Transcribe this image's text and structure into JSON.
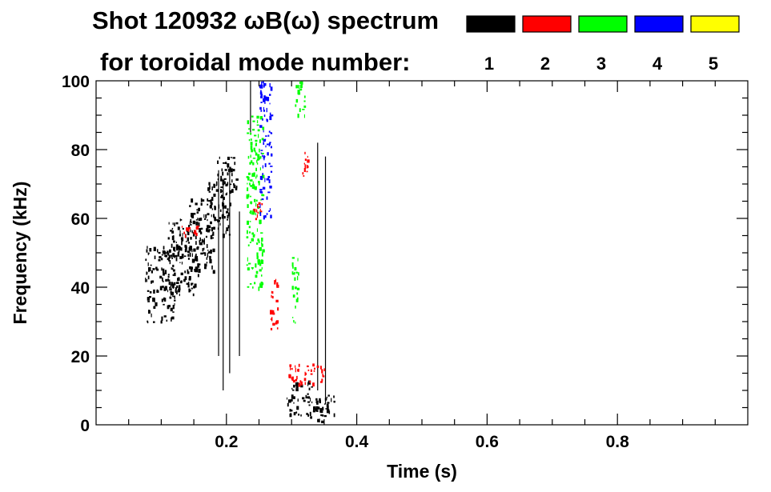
{
  "chart_data": {
    "type": "heatmap",
    "title": "Shot 120932 ωB(ω) spectrum",
    "subtitle": "for toroidal mode number:",
    "xlabel": "Time (s)",
    "ylabel": "Frequency (kHz)",
    "xlim": [
      0.0,
      1.0
    ],
    "ylim": [
      0,
      100
    ],
    "x_ticks": [
      0.2,
      0.4,
      0.6,
      0.8
    ],
    "x_tick_labels": [
      "0.2",
      "0.4",
      "0.6",
      "0.8"
    ],
    "y_ticks": [
      0,
      20,
      40,
      60,
      80,
      100
    ],
    "y_tick_labels": [
      "0",
      "20",
      "40",
      "60",
      "80",
      "100"
    ],
    "grid": false,
    "legend_placement": "top-right",
    "legend": [
      {
        "name": "1",
        "color": "#000000"
      },
      {
        "name": "2",
        "color": "#ff0000"
      },
      {
        "name": "3",
        "color": "#00ff00"
      },
      {
        "name": "4",
        "color": "#0000ff"
      },
      {
        "name": "5",
        "color": "#ffff00"
      }
    ],
    "series": [
      {
        "mode": 1,
        "color": "#000000",
        "regions": [
          {
            "t": [
              0.075,
              0.12
            ],
            "f": [
              30,
              52
            ]
          },
          {
            "t": [
              0.11,
              0.16
            ],
            "f": [
              38,
              60
            ]
          },
          {
            "t": [
              0.14,
              0.18
            ],
            "f": [
              45,
              66
            ]
          },
          {
            "t": [
              0.17,
              0.205
            ],
            "f": [
              55,
              72
            ]
          },
          {
            "t": [
              0.185,
              0.215
            ],
            "f": [
              68,
              78
            ]
          },
          {
            "t": [
              0.29,
              0.365
            ],
            "f": [
              1,
              9
            ]
          },
          {
            "t": [
              0.3,
              0.33
            ],
            "f": [
              9,
              13
            ]
          }
        ],
        "lines": [
          {
            "t": 0.188,
            "f": [
              20,
              74
            ]
          },
          {
            "t": 0.195,
            "f": [
              10,
              70
            ]
          },
          {
            "t": 0.205,
            "f": [
              15,
              75
            ]
          },
          {
            "t": 0.22,
            "f": [
              20,
              62
            ]
          },
          {
            "t": 0.34,
            "f": [
              10,
              82
            ]
          },
          {
            "t": 0.352,
            "f": [
              6,
              78
            ]
          },
          {
            "t": 0.237,
            "f": [
              85,
              100
            ]
          }
        ]
      },
      {
        "mode": 2,
        "color": "#ff0000",
        "regions": [
          {
            "t": [
              0.265,
              0.278
            ],
            "f": [
              28,
              44
            ]
          },
          {
            "t": [
              0.295,
              0.35
            ],
            "f": [
              12,
              18
            ]
          },
          {
            "t": [
              0.315,
              0.325
            ],
            "f": [
              72,
              80
            ]
          },
          {
            "t": [
              0.24,
              0.255
            ],
            "f": [
              60,
              67
            ]
          },
          {
            "t": [
              0.13,
              0.155
            ],
            "f": [
              55,
              58
            ]
          }
        ],
        "lines": []
      },
      {
        "mode": 3,
        "color": "#00ff00",
        "regions": [
          {
            "t": [
              0.23,
              0.255
            ],
            "f": [
              40,
              90
            ]
          },
          {
            "t": [
              0.305,
              0.32
            ],
            "f": [
              90,
              100
            ]
          },
          {
            "t": [
              0.3,
              0.31
            ],
            "f": [
              30,
              50
            ]
          }
        ],
        "lines": []
      },
      {
        "mode": 4,
        "color": "#0000ff",
        "regions": [
          {
            "t": [
              0.25,
              0.268
            ],
            "f": [
              60,
              100
            ]
          }
        ],
        "lines": []
      }
    ]
  }
}
